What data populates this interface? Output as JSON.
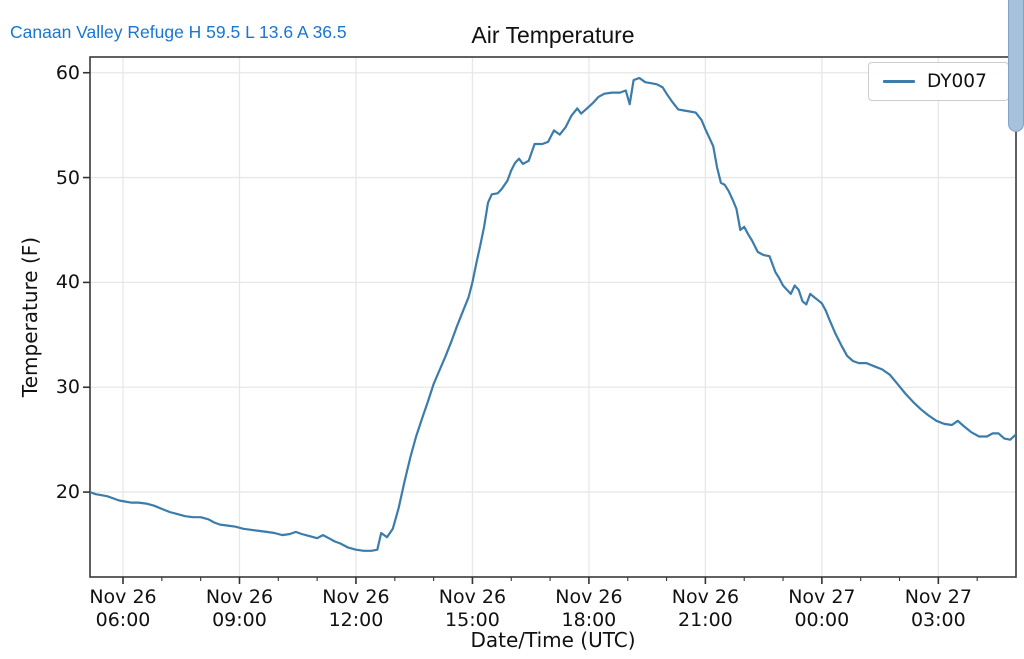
{
  "header": {
    "station_summary": "Canaan Valley Refuge H 59.5 L 13.6 A 36.5"
  },
  "colors": {
    "line": "#3b7cab",
    "header_text": "#1976d2",
    "grid": "#e7e7e7",
    "spine": "#3a3a3a",
    "tick": "#333333",
    "scrollbar": "#a6c1dc",
    "scrollbar_border": "#82a3c4"
  },
  "chart_data": {
    "type": "line",
    "title": "Air Temperature",
    "xlabel": "Date/Time (UTC)",
    "ylabel": "Temperature (F)",
    "grid": true,
    "legend_position": "upper right",
    "x_unit": "hours from Nov 26 00:00 UTC",
    "xlim_hours": [
      5.15,
      29.0
    ],
    "ylim": [
      11.9,
      61.5
    ],
    "y_ticks": [
      20,
      30,
      40,
      50,
      60
    ],
    "x_ticks": [
      {
        "hour": 6,
        "line1": "Nov 26",
        "line2": "06:00"
      },
      {
        "hour": 9,
        "line1": "Nov 26",
        "line2": "09:00"
      },
      {
        "hour": 12,
        "line1": "Nov 26",
        "line2": "12:00"
      },
      {
        "hour": 15,
        "line1": "Nov 26",
        "line2": "15:00"
      },
      {
        "hour": 18,
        "line1": "Nov 26",
        "line2": "18:00"
      },
      {
        "hour": 21,
        "line1": "Nov 26",
        "line2": "21:00"
      },
      {
        "hour": 24,
        "line1": "Nov 27",
        "line2": "00:00"
      },
      {
        "hour": 27,
        "line1": "Nov 27",
        "line2": "03:00"
      }
    ],
    "series": [
      {
        "name": "DY007",
        "points": [
          [
            5.15,
            20.0
          ],
          [
            5.3,
            19.8
          ],
          [
            5.45,
            19.7
          ],
          [
            5.6,
            19.6
          ],
          [
            5.75,
            19.4
          ],
          [
            5.9,
            19.2
          ],
          [
            6.05,
            19.1
          ],
          [
            6.2,
            19.0
          ],
          [
            6.4,
            19.0
          ],
          [
            6.6,
            18.9
          ],
          [
            6.8,
            18.7
          ],
          [
            7.0,
            18.4
          ],
          [
            7.2,
            18.1
          ],
          [
            7.4,
            17.9
          ],
          [
            7.6,
            17.7
          ],
          [
            7.8,
            17.6
          ],
          [
            8.0,
            17.6
          ],
          [
            8.2,
            17.4
          ],
          [
            8.35,
            17.1
          ],
          [
            8.5,
            16.9
          ],
          [
            8.7,
            16.8
          ],
          [
            8.9,
            16.7
          ],
          [
            9.1,
            16.5
          ],
          [
            9.3,
            16.4
          ],
          [
            9.5,
            16.3
          ],
          [
            9.7,
            16.2
          ],
          [
            9.9,
            16.1
          ],
          [
            10.1,
            15.9
          ],
          [
            10.3,
            16.0
          ],
          [
            10.45,
            16.2
          ],
          [
            10.6,
            16.0
          ],
          [
            10.8,
            15.8
          ],
          [
            11.0,
            15.6
          ],
          [
            11.15,
            15.9
          ],
          [
            11.3,
            15.6
          ],
          [
            11.45,
            15.3
          ],
          [
            11.6,
            15.1
          ],
          [
            11.8,
            14.7
          ],
          [
            12.0,
            14.5
          ],
          [
            12.2,
            14.4
          ],
          [
            12.4,
            14.4
          ],
          [
            12.55,
            14.5
          ],
          [
            12.65,
            16.1
          ],
          [
            12.8,
            15.7
          ],
          [
            12.95,
            16.5
          ],
          [
            13.1,
            18.5
          ],
          [
            13.25,
            21.0
          ],
          [
            13.4,
            23.3
          ],
          [
            13.55,
            25.3
          ],
          [
            13.7,
            27.0
          ],
          [
            13.85,
            28.6
          ],
          [
            14.0,
            30.3
          ],
          [
            14.15,
            31.6
          ],
          [
            14.3,
            32.9
          ],
          [
            14.45,
            34.3
          ],
          [
            14.6,
            35.8
          ],
          [
            14.75,
            37.2
          ],
          [
            14.9,
            38.6
          ],
          [
            15.0,
            40.0
          ],
          [
            15.1,
            41.8
          ],
          [
            15.2,
            43.5
          ],
          [
            15.3,
            45.3
          ],
          [
            15.4,
            47.6
          ],
          [
            15.5,
            48.4
          ],
          [
            15.65,
            48.5
          ],
          [
            15.75,
            48.9
          ],
          [
            15.9,
            49.7
          ],
          [
            16.0,
            50.7
          ],
          [
            16.1,
            51.4
          ],
          [
            16.2,
            51.8
          ],
          [
            16.3,
            51.3
          ],
          [
            16.45,
            51.6
          ],
          [
            16.6,
            53.2
          ],
          [
            16.8,
            53.2
          ],
          [
            16.95,
            53.4
          ],
          [
            17.1,
            54.5
          ],
          [
            17.25,
            54.1
          ],
          [
            17.4,
            54.8
          ],
          [
            17.55,
            55.9
          ],
          [
            17.7,
            56.6
          ],
          [
            17.8,
            56.1
          ],
          [
            17.95,
            56.6
          ],
          [
            18.1,
            57.1
          ],
          [
            18.25,
            57.7
          ],
          [
            18.4,
            58.0
          ],
          [
            18.6,
            58.1
          ],
          [
            18.8,
            58.1
          ],
          [
            18.95,
            58.3
          ],
          [
            19.05,
            57.0
          ],
          [
            19.15,
            59.3
          ],
          [
            19.3,
            59.5
          ],
          [
            19.45,
            59.1
          ],
          [
            19.6,
            59.0
          ],
          [
            19.75,
            58.9
          ],
          [
            19.9,
            58.6
          ],
          [
            20.0,
            58.0
          ],
          [
            20.15,
            57.2
          ],
          [
            20.3,
            56.5
          ],
          [
            20.45,
            56.4
          ],
          [
            20.6,
            56.3
          ],
          [
            20.75,
            56.2
          ],
          [
            20.9,
            55.5
          ],
          [
            21.0,
            54.6
          ],
          [
            21.1,
            53.8
          ],
          [
            21.2,
            53.0
          ],
          [
            21.3,
            51.0
          ],
          [
            21.4,
            49.5
          ],
          [
            21.5,
            49.3
          ],
          [
            21.6,
            48.7
          ],
          [
            21.7,
            47.9
          ],
          [
            21.8,
            47.0
          ],
          [
            21.9,
            45.0
          ],
          [
            22.0,
            45.3
          ],
          [
            22.1,
            44.6
          ],
          [
            22.2,
            44.0
          ],
          [
            22.35,
            42.9
          ],
          [
            22.5,
            42.6
          ],
          [
            22.65,
            42.5
          ],
          [
            22.8,
            41.0
          ],
          [
            22.9,
            40.4
          ],
          [
            23.0,
            39.7
          ],
          [
            23.1,
            39.3
          ],
          [
            23.2,
            38.9
          ],
          [
            23.3,
            39.7
          ],
          [
            23.4,
            39.3
          ],
          [
            23.5,
            38.2
          ],
          [
            23.6,
            37.9
          ],
          [
            23.7,
            38.9
          ],
          [
            23.8,
            38.6
          ],
          [
            23.9,
            38.3
          ],
          [
            24.0,
            38.0
          ],
          [
            24.1,
            37.3
          ],
          [
            24.2,
            36.4
          ],
          [
            24.35,
            35.1
          ],
          [
            24.5,
            34.0
          ],
          [
            24.65,
            33.0
          ],
          [
            24.8,
            32.5
          ],
          [
            24.95,
            32.3
          ],
          [
            25.15,
            32.3
          ],
          [
            25.35,
            32.0
          ],
          [
            25.55,
            31.7
          ],
          [
            25.75,
            31.2
          ],
          [
            25.95,
            30.3
          ],
          [
            26.15,
            29.4
          ],
          [
            26.35,
            28.6
          ],
          [
            26.55,
            27.9
          ],
          [
            26.75,
            27.3
          ],
          [
            26.95,
            26.8
          ],
          [
            27.15,
            26.5
          ],
          [
            27.35,
            26.4
          ],
          [
            27.5,
            26.8
          ],
          [
            27.65,
            26.3
          ],
          [
            27.85,
            25.7
          ],
          [
            28.05,
            25.3
          ],
          [
            28.25,
            25.3
          ],
          [
            28.4,
            25.6
          ],
          [
            28.55,
            25.6
          ],
          [
            28.7,
            25.1
          ],
          [
            28.85,
            25.0
          ],
          [
            29.0,
            25.5
          ]
        ]
      }
    ]
  }
}
